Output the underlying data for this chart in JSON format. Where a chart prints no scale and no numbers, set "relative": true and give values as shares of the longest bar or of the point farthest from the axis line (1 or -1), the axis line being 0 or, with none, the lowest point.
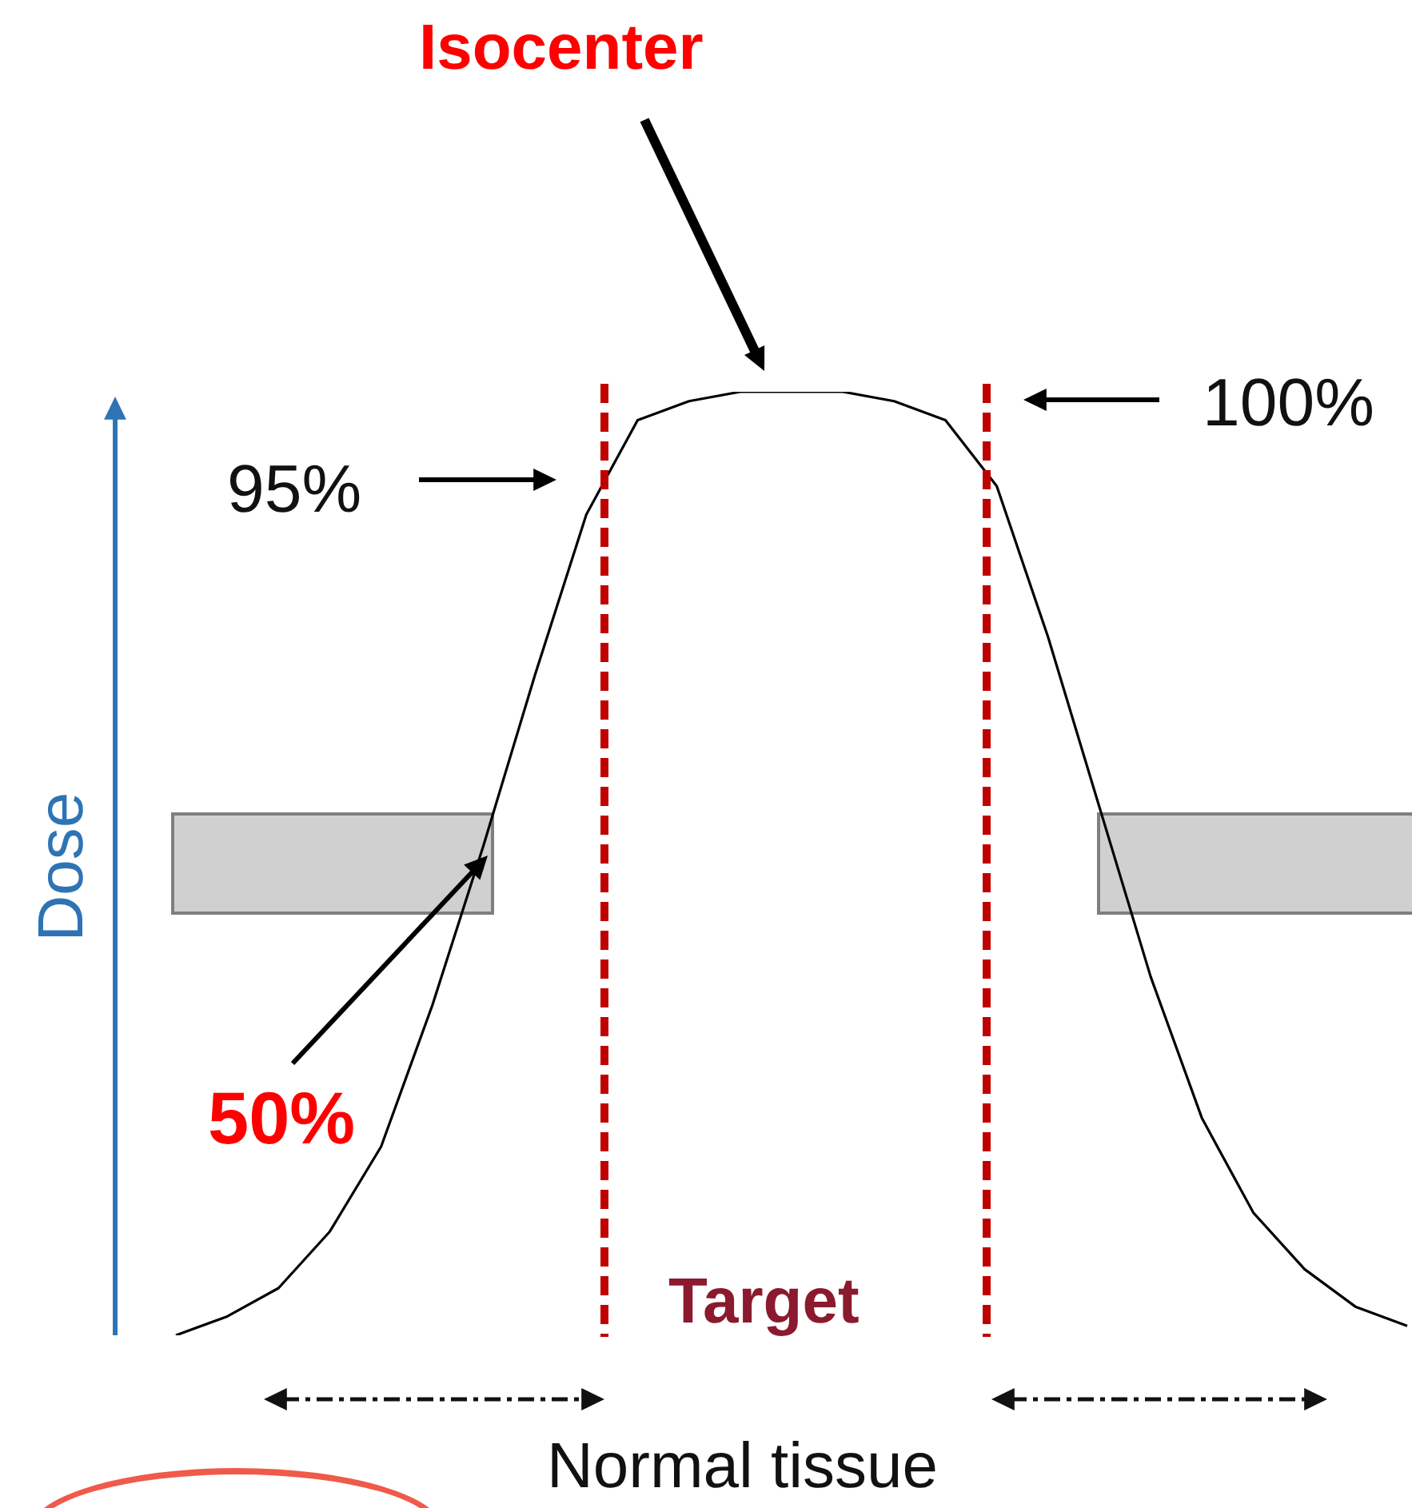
{
  "chart_data": {
    "type": "line",
    "relative": true,
    "ylabel": "Dose",
    "legend": false,
    "marker": "none",
    "line_style": "solid",
    "categories": [
      null,
      null,
      null,
      null,
      null,
      null,
      null,
      null,
      null,
      null,
      null,
      null,
      null,
      null,
      null,
      null,
      null,
      null,
      null,
      null,
      null,
      null,
      null,
      null,
      null
    ],
    "series": [
      {
        "color": "#000000",
        "values": [
          0,
          0.02,
          0.05,
          0.11,
          0.2,
          0.35,
          0.52,
          0.7,
          0.87,
          0.97,
          0.99,
          1,
          1,
          1,
          0.99,
          0.97,
          0.9,
          0.74,
          0.56,
          0.38,
          0.23,
          0.13,
          0.07,
          0.03,
          0.01
        ]
      }
    ],
    "annotations": [
      "Isocenter",
      "95%",
      "100%",
      "50%",
      "Target",
      "Normal tissue"
    ]
  }
}
